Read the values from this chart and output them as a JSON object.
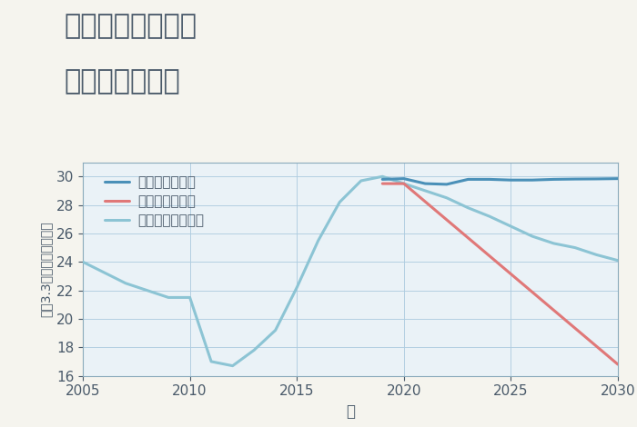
{
  "title_line1": "千葉県印西市滝の",
  "title_line2": "土地の価格推移",
  "xlabel": "年",
  "ylabel": "坪（3.3㎡）単価（万円）",
  "background_color": "#f5f4ee",
  "plot_background_color": "#eaf2f7",
  "grid_color": "#aecce0",
  "ylim": [
    16,
    31
  ],
  "xlim": [
    2005,
    2030
  ],
  "yticks": [
    16,
    18,
    20,
    22,
    24,
    26,
    28,
    30
  ],
  "xticks": [
    2005,
    2010,
    2015,
    2020,
    2025,
    2030
  ],
  "good_scenario": {
    "label": "グッドシナリオ",
    "color": "#4a90b8",
    "x": [
      2019,
      2020,
      2021,
      2022,
      2023,
      2024,
      2025,
      2026,
      2027,
      2028,
      2029,
      2030
    ],
    "y": [
      29.8,
      29.85,
      29.5,
      29.45,
      29.8,
      29.8,
      29.75,
      29.75,
      29.8,
      29.82,
      29.83,
      29.85
    ]
  },
  "bad_scenario": {
    "label": "バッドシナリオ",
    "color": "#e07878",
    "x": [
      2019,
      2020,
      2030
    ],
    "y": [
      29.5,
      29.5,
      16.8
    ]
  },
  "normal_scenario": {
    "label": "ノーマルシナリオ",
    "color": "#8cc4d4",
    "x": [
      2005,
      2007,
      2008,
      2009,
      2010,
      2011,
      2012,
      2013,
      2014,
      2015,
      2016,
      2017,
      2018,
      2019,
      2020,
      2021,
      2022,
      2023,
      2024,
      2025,
      2026,
      2027,
      2028,
      2029,
      2030
    ],
    "y": [
      24.0,
      22.5,
      22.0,
      21.5,
      21.5,
      17.0,
      16.7,
      17.8,
      19.2,
      22.2,
      25.5,
      28.2,
      29.7,
      30.0,
      29.5,
      29.0,
      28.5,
      27.8,
      27.2,
      26.5,
      25.8,
      25.3,
      25.0,
      24.5,
      24.1
    ]
  },
  "title_fontsize": 22,
  "tick_fontsize": 11,
  "label_fontsize": 12,
  "legend_fontsize": 11,
  "line_width": 2.2
}
